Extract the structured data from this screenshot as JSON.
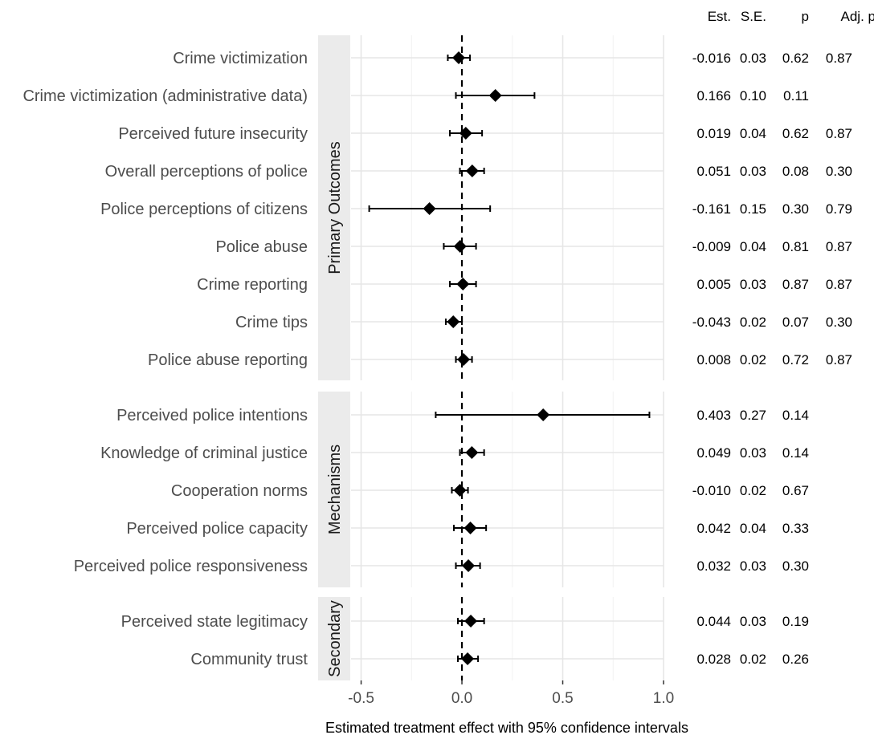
{
  "chart_data": {
    "type": "scatter",
    "subtype": "forest-plot",
    "xlabel": "Estimated treatment effect with 95% confidence intervals",
    "xlim": [
      -0.55,
      1.0
    ],
    "xticks": [
      -0.5,
      0.0,
      0.5,
      1.0
    ],
    "xtick_labels": [
      "-0.5",
      "0.0",
      "0.5",
      "1.0"
    ],
    "reference_line": 0,
    "grid": true,
    "columns": [
      "Est.",
      "S.E.",
      "p",
      "Adj. p"
    ],
    "panels": [
      {
        "name": "Primary Outcomes",
        "rows": [
          {
            "label": "Crime victimization",
            "est": -0.016,
            "lo": -0.07,
            "hi": 0.04,
            "est_txt": "-0.016",
            "se": "0.03",
            "p": "0.62",
            "adj_p": "0.87"
          },
          {
            "label": "Crime victimization (administrative data)",
            "est": 0.166,
            "lo": -0.03,
            "hi": 0.36,
            "est_txt": "0.166",
            "se": "0.10",
            "p": "0.11",
            "adj_p": ""
          },
          {
            "label": "Perceived future insecurity",
            "est": 0.019,
            "lo": -0.06,
            "hi": 0.1,
            "est_txt": "0.019",
            "se": "0.04",
            "p": "0.62",
            "adj_p": "0.87"
          },
          {
            "label": "Overall perceptions of police",
            "est": 0.051,
            "lo": -0.01,
            "hi": 0.11,
            "est_txt": "0.051",
            "se": "0.03",
            "p": "0.08",
            "adj_p": "0.30"
          },
          {
            "label": "Police perceptions of citizens",
            "est": -0.161,
            "lo": -0.46,
            "hi": 0.14,
            "est_txt": "-0.161",
            "se": "0.15",
            "p": "0.30",
            "adj_p": "0.79"
          },
          {
            "label": "Police abuse",
            "est": -0.009,
            "lo": -0.09,
            "hi": 0.07,
            "est_txt": "-0.009",
            "se": "0.04",
            "p": "0.81",
            "adj_p": "0.87"
          },
          {
            "label": "Crime reporting",
            "est": 0.005,
            "lo": -0.06,
            "hi": 0.07,
            "est_txt": "0.005",
            "se": "0.03",
            "p": "0.87",
            "adj_p": "0.87"
          },
          {
            "label": "Crime tips",
            "est": -0.043,
            "lo": -0.08,
            "hi": 0.0,
            "est_txt": "-0.043",
            "se": "0.02",
            "p": "0.07",
            "adj_p": "0.30"
          },
          {
            "label": "Police abuse reporting",
            "est": 0.008,
            "lo": -0.03,
            "hi": 0.05,
            "est_txt": "0.008",
            "se": "0.02",
            "p": "0.72",
            "adj_p": "0.87"
          }
        ]
      },
      {
        "name": "Mechanisms",
        "rows": [
          {
            "label": "Perceived police intentions",
            "est": 0.403,
            "lo": -0.13,
            "hi": 0.93,
            "est_txt": "0.403",
            "se": "0.27",
            "p": "0.14",
            "adj_p": ""
          },
          {
            "label": "Knowledge of criminal justice",
            "est": 0.049,
            "lo": -0.01,
            "hi": 0.11,
            "est_txt": "0.049",
            "se": "0.03",
            "p": "0.14",
            "adj_p": ""
          },
          {
            "label": "Cooperation norms",
            "est": -0.01,
            "lo": -0.05,
            "hi": 0.03,
            "est_txt": "-0.010",
            "se": "0.02",
            "p": "0.67",
            "adj_p": ""
          },
          {
            "label": "Perceived police capacity",
            "est": 0.042,
            "lo": -0.04,
            "hi": 0.12,
            "est_txt": "0.042",
            "se": "0.04",
            "p": "0.33",
            "adj_p": ""
          },
          {
            "label": "Perceived police responsiveness",
            "est": 0.032,
            "lo": -0.03,
            "hi": 0.09,
            "est_txt": "0.032",
            "se": "0.03",
            "p": "0.30",
            "adj_p": ""
          }
        ]
      },
      {
        "name": "Secondary",
        "rows": [
          {
            "label": "Perceived state legitimacy",
            "est": 0.044,
            "lo": -0.02,
            "hi": 0.11,
            "est_txt": "0.044",
            "se": "0.03",
            "p": "0.19",
            "adj_p": ""
          },
          {
            "label": "Community trust",
            "est": 0.028,
            "lo": -0.02,
            "hi": 0.08,
            "est_txt": "0.028",
            "se": "0.02",
            "p": "0.26",
            "adj_p": ""
          }
        ]
      }
    ]
  }
}
